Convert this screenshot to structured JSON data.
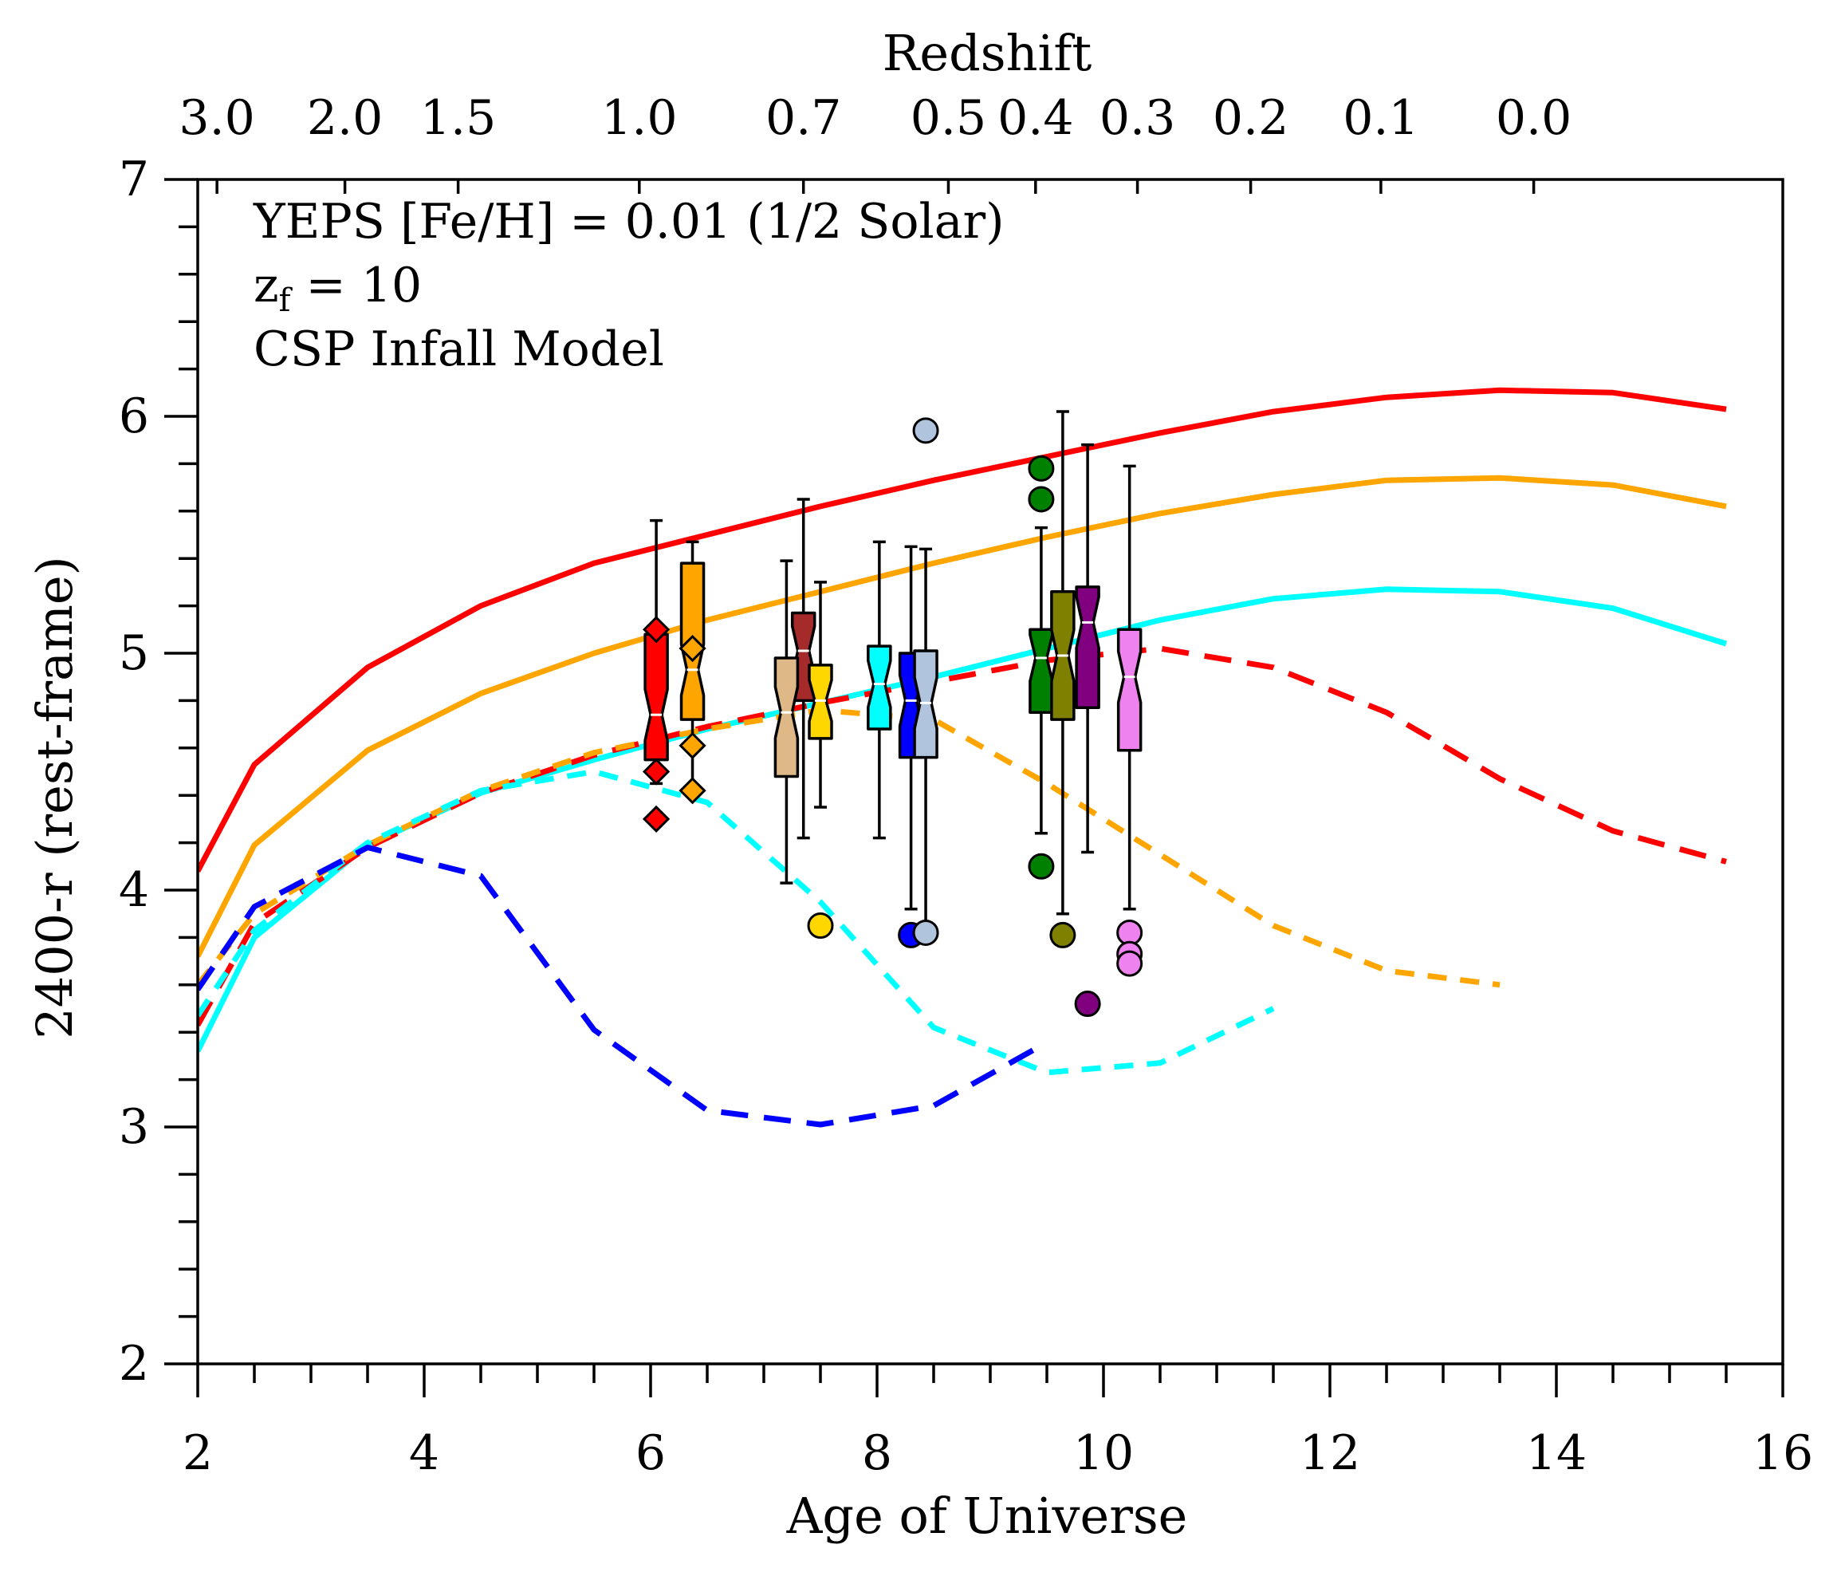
{
  "chart_data": {
    "type": "line+boxplot",
    "title": "",
    "xlabel": "Age of Universe",
    "ylabel": "2400-r (rest-frame)",
    "top_xlabel": "Redshift",
    "xlim": [
      2,
      16
    ],
    "ylim": [
      2,
      7
    ],
    "x_ticks": [
      "2",
      "4",
      "6",
      "8",
      "10",
      "12",
      "14",
      "16"
    ],
    "y_ticks": [
      "2",
      "3",
      "4",
      "5",
      "6",
      "7"
    ],
    "top_ticks": [
      {
        "label": "3.0",
        "age": 2.17
      },
      {
        "label": "2.0",
        "age": 3.3
      },
      {
        "label": "1.5",
        "age": 4.3
      },
      {
        "label": "1.0",
        "age": 5.9
      },
      {
        "label": "0.7",
        "age": 7.35
      },
      {
        "label": "0.5",
        "age": 8.63
      },
      {
        "label": "0.4",
        "age": 9.4
      },
      {
        "label": "0.3",
        "age": 10.3
      },
      {
        "label": "0.2",
        "age": 11.3
      },
      {
        "label": "0.1",
        "age": 12.45
      },
      {
        "label": "0.0",
        "age": 13.8
      }
    ],
    "annotations": {
      "line1": "YEPS [Fe/H] = 0.01 (1/2 Solar)",
      "line2_main": "z",
      "line2_sub": "f",
      "line2_rest": " = 10",
      "line3": "CSP Infall Model"
    },
    "series": [
      {
        "name": "red-solid",
        "color": "#ff0000",
        "dash": "solid",
        "x": [
          2,
          2.5,
          3.5,
          4.5,
          5.5,
          6.5,
          7.5,
          8.5,
          9.5,
          10.5,
          11.5,
          12.5,
          13.5,
          14.5,
          15.5
        ],
        "y": [
          4.08,
          4.53,
          4.94,
          5.2,
          5.38,
          5.5,
          5.62,
          5.73,
          5.83,
          5.93,
          6.02,
          6.08,
          6.11,
          6.1,
          6.03
        ]
      },
      {
        "name": "orange-solid",
        "color": "#ffa500",
        "dash": "solid",
        "x": [
          2,
          2.5,
          3.5,
          4.5,
          5.5,
          6.5,
          7.5,
          8.5,
          9.5,
          10.5,
          11.5,
          12.5,
          13.5,
          14.5,
          15.5
        ],
        "y": [
          3.72,
          4.19,
          4.59,
          4.83,
          5.0,
          5.14,
          5.26,
          5.38,
          5.49,
          5.59,
          5.67,
          5.73,
          5.74,
          5.71,
          5.62
        ]
      },
      {
        "name": "cyan-solid",
        "color": "#00ffff",
        "dash": "solid",
        "x": [
          2,
          2.5,
          3.5,
          4.5,
          5.5,
          6.5,
          7.5,
          8.5,
          9.5,
          10.5,
          11.5,
          12.5,
          13.5,
          14.5,
          15.5
        ],
        "y": [
          3.32,
          3.8,
          4.19,
          4.41,
          4.55,
          4.68,
          4.79,
          4.9,
          5.02,
          5.14,
          5.23,
          5.27,
          5.26,
          5.19,
          5.04
        ]
      },
      {
        "name": "red-dashed",
        "color": "#ff0000",
        "dash": "long",
        "x": [
          2,
          2.5,
          3.5,
          4.5,
          5.5,
          6.5,
          7.5,
          8.5,
          9.5,
          10.5,
          11.5,
          12.5,
          13.5,
          14.5,
          15.5
        ],
        "y": [
          3.43,
          3.86,
          4.18,
          4.41,
          4.57,
          4.69,
          4.79,
          4.88,
          4.97,
          5.02,
          4.94,
          4.75,
          4.47,
          4.25,
          4.12
        ]
      },
      {
        "name": "orange-dashed",
        "color": "#ffa500",
        "dash": "medium",
        "x": [
          2,
          2.5,
          3.5,
          4.5,
          5.5,
          6.5,
          7.5,
          8.5,
          9.5,
          10.5,
          11.5,
          12.5,
          13.5
        ],
        "y": [
          3.6,
          3.9,
          4.19,
          4.42,
          4.58,
          4.68,
          4.76,
          4.72,
          4.45,
          4.15,
          3.85,
          3.66,
          3.6
        ]
      },
      {
        "name": "cyan-dashed",
        "color": "#00ffff",
        "dash": "medium",
        "x": [
          2,
          2.5,
          3.5,
          4.5,
          5.5,
          6.5,
          7.5,
          8.5,
          9.5,
          10.5,
          11.5
        ],
        "y": [
          3.47,
          3.83,
          4.2,
          4.42,
          4.5,
          4.37,
          3.95,
          3.42,
          3.23,
          3.27,
          3.5
        ]
      },
      {
        "name": "blue-dashed",
        "color": "#0000ff",
        "dash": "long",
        "x": [
          2,
          2.5,
          3.5,
          4.5,
          5.5,
          6.5,
          7.5,
          8.5,
          9.4
        ],
        "y": [
          3.58,
          3.93,
          4.18,
          4.06,
          3.41,
          3.07,
          3.01,
          3.09,
          3.33
        ]
      }
    ],
    "boxes": [
      {
        "x": 6.05,
        "color": "#ff0000",
        "q1": 4.55,
        "q3": 5.08,
        "median": 4.74,
        "wlo": 4.45,
        "whi": 5.56,
        "outlier_marker": "diamond",
        "outliers": [
          5.1,
          4.5,
          4.3
        ]
      },
      {
        "x": 6.37,
        "color": "#ffa500",
        "q1": 4.72,
        "q3": 5.38,
        "median": 4.93,
        "wlo": 4.42,
        "whi": 5.47,
        "outlier_marker": "diamond",
        "outliers": [
          5.02,
          4.61,
          4.42
        ]
      },
      {
        "x": 7.35,
        "color": "#a52a2a",
        "q1": 4.8,
        "q3": 5.17,
        "median": 5.01,
        "wlo": 4.22,
        "whi": 5.65,
        "outlier_marker": "circle",
        "outliers": []
      },
      {
        "x": 7.2,
        "color": "#deb887",
        "q1": 4.48,
        "q3": 4.98,
        "median": 4.75,
        "wlo": 4.03,
        "whi": 5.39,
        "outlier_marker": "circle",
        "outliers": []
      },
      {
        "x": 7.5,
        "color": "#ffd700",
        "q1": 4.64,
        "q3": 4.95,
        "median": 4.8,
        "wlo": 4.35,
        "whi": 5.3,
        "outlier_marker": "circle",
        "outliers": [
          3.85
        ]
      },
      {
        "x": 8.02,
        "color": "#00ffff",
        "q1": 4.68,
        "q3": 5.03,
        "median": 4.87,
        "wlo": 4.22,
        "whi": 5.47,
        "outlier_marker": "circle",
        "outliers": []
      },
      {
        "x": 8.3,
        "color": "#0000ff",
        "q1": 4.56,
        "q3": 5.0,
        "median": 4.8,
        "wlo": 3.92,
        "whi": 5.45,
        "outlier_marker": "circle",
        "outliers": [
          3.81
        ]
      },
      {
        "x": 8.43,
        "color": "#b0c4de",
        "q1": 4.56,
        "q3": 5.01,
        "median": 4.79,
        "wlo": 3.82,
        "whi": 5.44,
        "outlier_marker": "circle",
        "outliers": [
          5.94,
          3.82
        ]
      },
      {
        "x": 9.45,
        "color": "#008000",
        "q1": 4.75,
        "q3": 5.1,
        "median": 4.98,
        "wlo": 4.24,
        "whi": 5.53,
        "outlier_marker": "circle",
        "outliers": [
          5.78,
          5.65,
          4.1
        ]
      },
      {
        "x": 9.64,
        "color": "#808000",
        "q1": 4.72,
        "q3": 5.26,
        "median": 4.99,
        "wlo": 3.9,
        "whi": 6.02,
        "outlier_marker": "circle",
        "outliers": [
          3.81
        ]
      },
      {
        "x": 9.86,
        "color": "#800080",
        "q1": 4.77,
        "q3": 5.28,
        "median": 5.13,
        "wlo": 4.16,
        "whi": 5.88,
        "outlier_marker": "circle",
        "outliers": [
          3.52
        ]
      },
      {
        "x": 10.23,
        "color": "#ee82ee",
        "q1": 4.59,
        "q3": 5.1,
        "median": 4.9,
        "wlo": 3.92,
        "whi": 5.79,
        "outlier_marker": "circle",
        "outliers": [
          3.82,
          3.73,
          3.69
        ]
      }
    ]
  }
}
